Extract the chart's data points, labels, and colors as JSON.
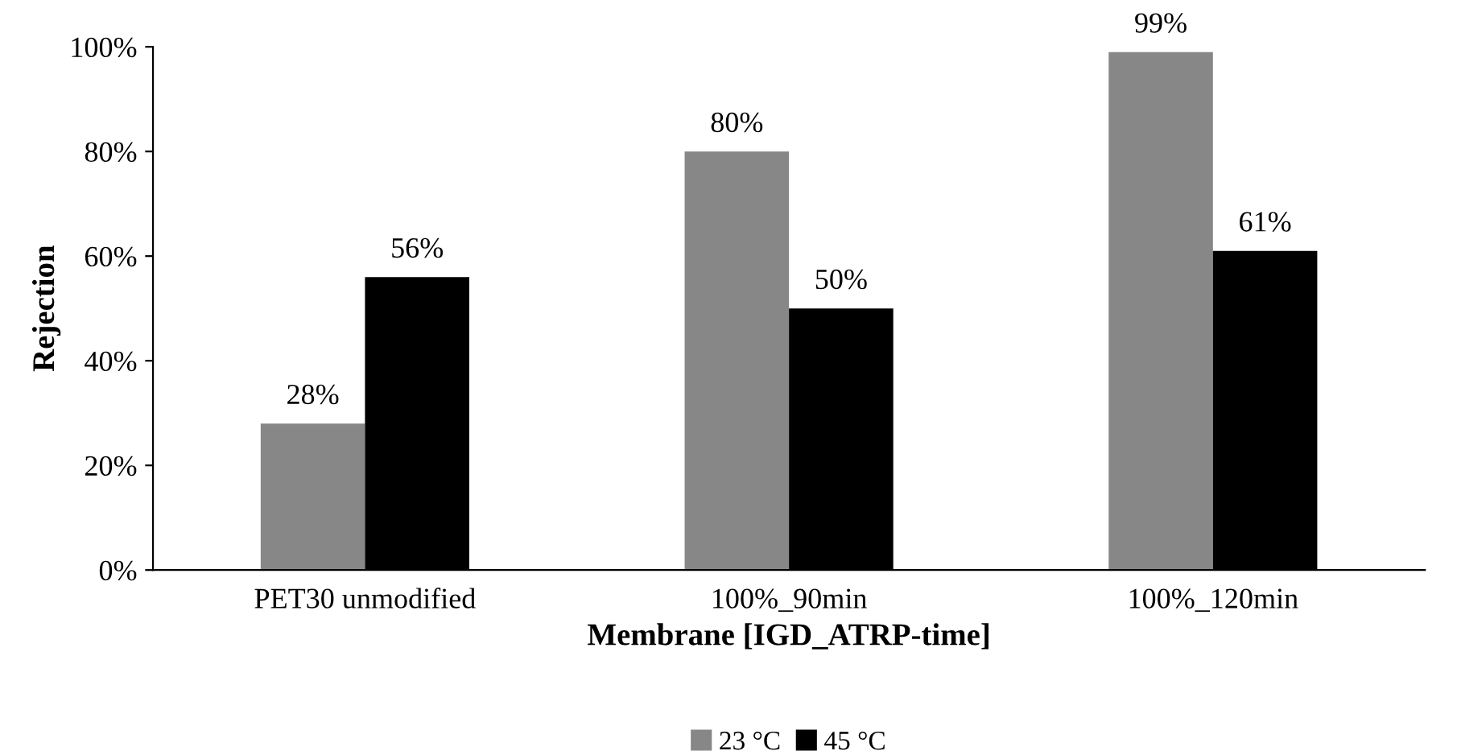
{
  "chart_data": {
    "type": "bar",
    "xlabel": "Membrane [IGD_ATRP-time]",
    "ylabel": "Rejection",
    "categories": [
      "PET30 unmodified",
      "100%_90min",
      "100%_120min"
    ],
    "series": [
      {
        "name": "23 °C",
        "color": "#878787",
        "values": [
          28,
          80,
          99
        ],
        "value_labels": [
          "28%",
          "80%",
          "99%"
        ]
      },
      {
        "name": "45 °C",
        "color": "#000000",
        "values": [
          56,
          50,
          61
        ],
        "value_labels": [
          "56%",
          "50%",
          "61%"
        ]
      }
    ],
    "ylim": [
      0,
      100
    ],
    "yticks": [
      {
        "value": 0,
        "label": "0%"
      },
      {
        "value": 20,
        "label": "20%"
      },
      {
        "value": 40,
        "label": "40%"
      },
      {
        "value": 60,
        "label": "60%"
      },
      {
        "value": 80,
        "label": "80%"
      },
      {
        "value": 100,
        "label": "100%"
      }
    ],
    "grid": false,
    "legend": "bottom"
  }
}
